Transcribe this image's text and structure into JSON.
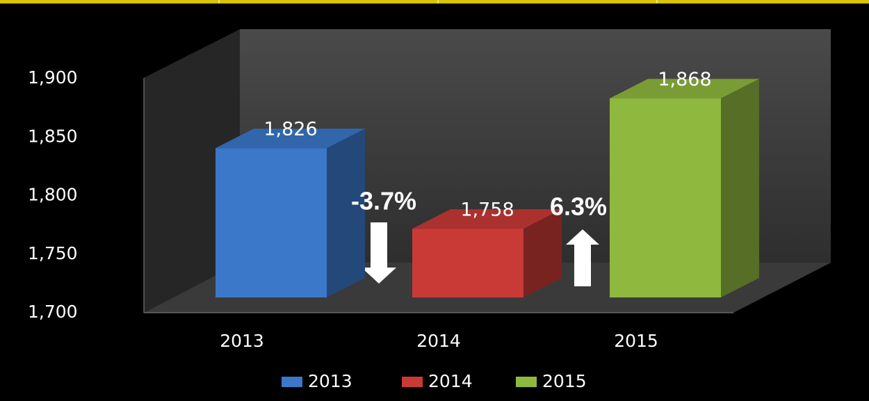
{
  "chart_data": {
    "type": "bar3d",
    "categories": [
      "2013",
      "2014",
      "2015"
    ],
    "values": [
      1826,
      1758,
      1868
    ],
    "value_labels": [
      "1,826",
      "1,758",
      "1,868"
    ],
    "colors": [
      "#3b78c9",
      "#c93a37",
      "#8fb83e"
    ],
    "ylim": [
      1700,
      1900
    ],
    "yticks": [
      {
        "value": 1700,
        "label": "1,700"
      },
      {
        "value": 1750,
        "label": "1,750"
      },
      {
        "value": 1800,
        "label": "1,800"
      },
      {
        "value": 1850,
        "label": "1,850"
      },
      {
        "value": 1900,
        "label": "1,900"
      }
    ],
    "annotations": [
      "-3.7%",
      "6.3%"
    ],
    "legend": "bottom"
  }
}
